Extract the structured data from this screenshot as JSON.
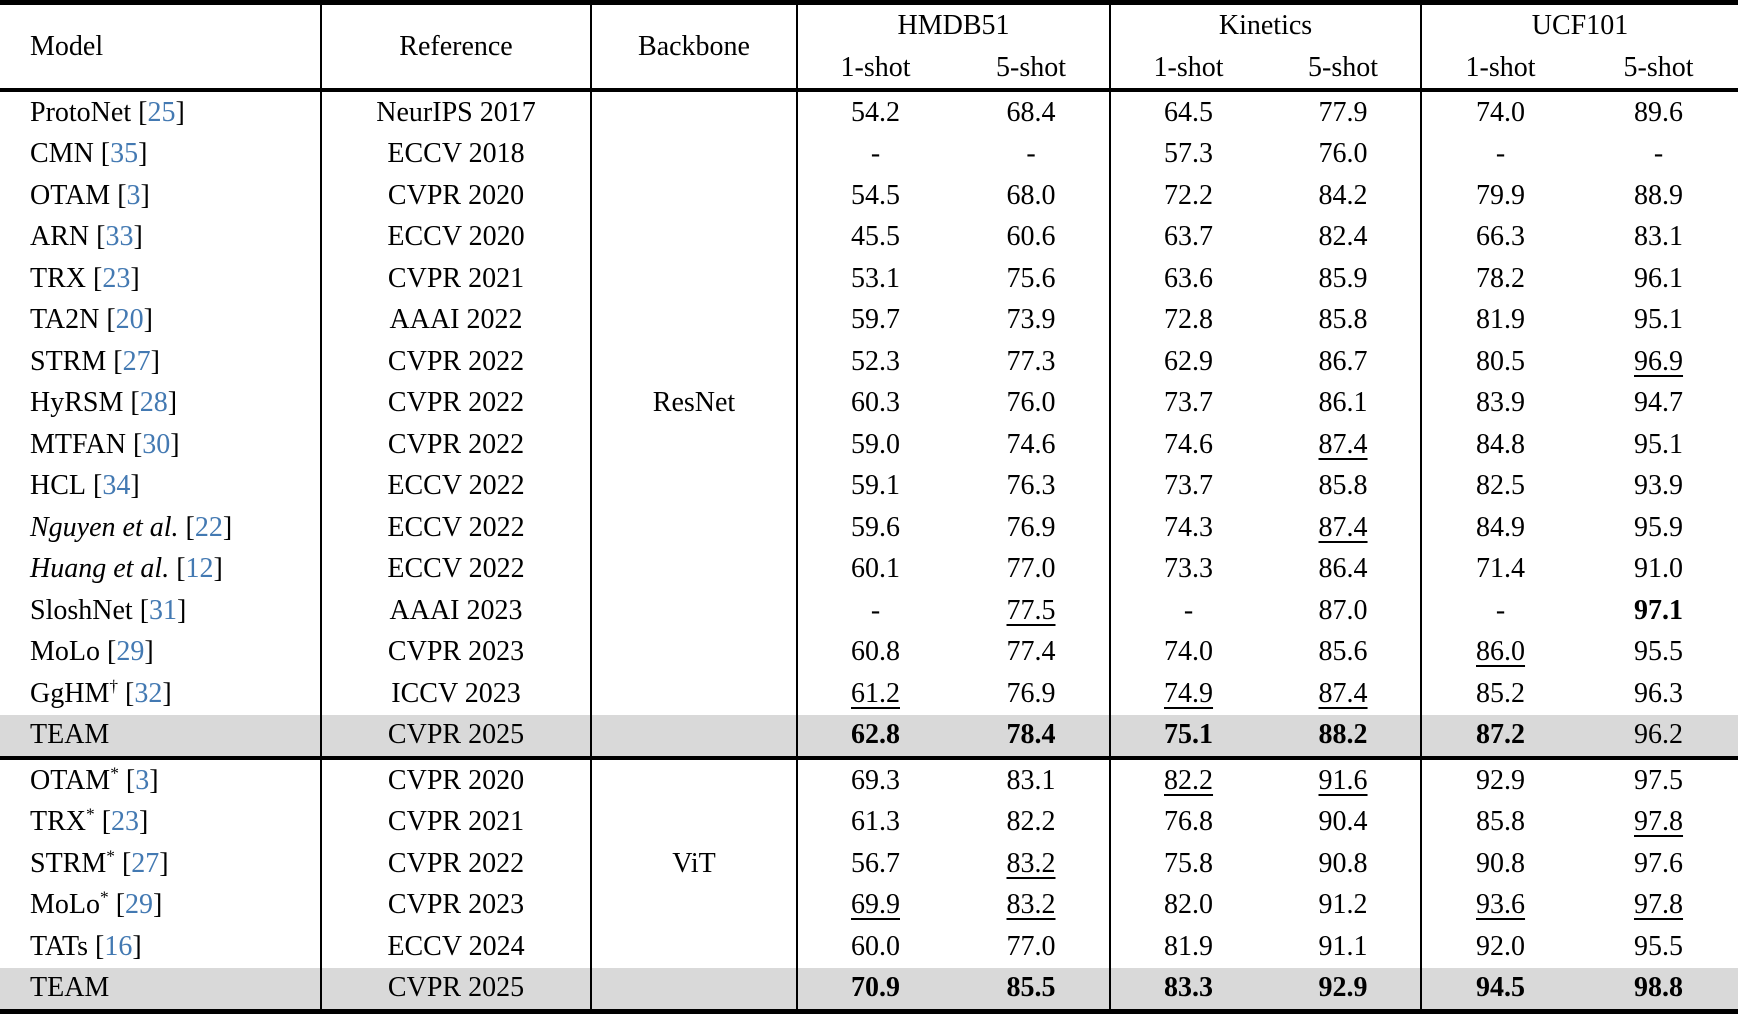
{
  "colors": {
    "citation_link": "#4379b2",
    "row_highlight": "#d9d9d9",
    "rule_black": "#000000"
  },
  "punct": {
    "open_bracket": "[",
    "close_bracket": "]"
  },
  "table": {
    "col_headers": {
      "model": "Model",
      "reference": "Reference",
      "backbone": "Backbone",
      "datasets": [
        "HMDB51",
        "Kinetics",
        "UCF101"
      ],
      "shots": [
        "1-shot",
        "5-shot"
      ]
    },
    "sections": [
      {
        "backbone": "ResNet",
        "rows": [
          {
            "name": "ProtoNet",
            "sup": "",
            "italic": false,
            "cite": "25",
            "ref": "NeurIPS 2017",
            "highlight": false,
            "cells": [
              "54.2",
              "68.4",
              "64.5",
              "77.9",
              "74.0",
              "89.6"
            ],
            "styles": [
              "",
              "",
              "",
              "",
              "",
              ""
            ]
          },
          {
            "name": "CMN",
            "sup": "",
            "italic": false,
            "cite": "35",
            "ref": "ECCV 2018",
            "highlight": false,
            "cells": [
              "-",
              "-",
              "57.3",
              "76.0",
              "-",
              "-"
            ],
            "styles": [
              "",
              "",
              "",
              "",
              "",
              ""
            ]
          },
          {
            "name": "OTAM",
            "sup": "",
            "italic": false,
            "cite": "3",
            "ref": "CVPR 2020",
            "highlight": false,
            "cells": [
              "54.5",
              "68.0",
              "72.2",
              "84.2",
              "79.9",
              "88.9"
            ],
            "styles": [
              "",
              "",
              "",
              "",
              "",
              ""
            ]
          },
          {
            "name": "ARN",
            "sup": "",
            "italic": false,
            "cite": "33",
            "ref": "ECCV 2020",
            "highlight": false,
            "cells": [
              "45.5",
              "60.6",
              "63.7",
              "82.4",
              "66.3",
              "83.1"
            ],
            "styles": [
              "",
              "",
              "",
              "",
              "",
              ""
            ]
          },
          {
            "name": "TRX",
            "sup": "",
            "italic": false,
            "cite": "23",
            "ref": "CVPR 2021",
            "highlight": false,
            "cells": [
              "53.1",
              "75.6",
              "63.6",
              "85.9",
              "78.2",
              "96.1"
            ],
            "styles": [
              "",
              "",
              "",
              "",
              "",
              ""
            ]
          },
          {
            "name": "TA2N",
            "sup": "",
            "italic": false,
            "cite": "20",
            "ref": "AAAI 2022",
            "highlight": false,
            "cells": [
              "59.7",
              "73.9",
              "72.8",
              "85.8",
              "81.9",
              "95.1"
            ],
            "styles": [
              "",
              "",
              "",
              "",
              "",
              ""
            ]
          },
          {
            "name": "STRM",
            "sup": "",
            "italic": false,
            "cite": "27",
            "ref": "CVPR 2022",
            "highlight": false,
            "cells": [
              "52.3",
              "77.3",
              "62.9",
              "86.7",
              "80.5",
              "96.9"
            ],
            "styles": [
              "",
              "",
              "",
              "",
              "",
              "u"
            ]
          },
          {
            "name": "HyRSM",
            "sup": "",
            "italic": false,
            "cite": "28",
            "ref": "CVPR 2022",
            "highlight": false,
            "cells": [
              "60.3",
              "76.0",
              "73.7",
              "86.1",
              "83.9",
              "94.7"
            ],
            "styles": [
              "",
              "",
              "",
              "",
              "",
              ""
            ]
          },
          {
            "name": "MTFAN",
            "sup": "",
            "italic": false,
            "cite": "30",
            "ref": "CVPR 2022",
            "highlight": false,
            "cells": [
              "59.0",
              "74.6",
              "74.6",
              "87.4",
              "84.8",
              "95.1"
            ],
            "styles": [
              "",
              "",
              "",
              "u",
              "",
              ""
            ]
          },
          {
            "name": "HCL",
            "sup": "",
            "italic": false,
            "cite": "34",
            "ref": "ECCV 2022",
            "highlight": false,
            "cells": [
              "59.1",
              "76.3",
              "73.7",
              "85.8",
              "82.5",
              "93.9"
            ],
            "styles": [
              "",
              "",
              "",
              "",
              "",
              ""
            ]
          },
          {
            "name": "Nguyen et al.",
            "sup": "",
            "italic": true,
            "cite": "22",
            "ref": "ECCV 2022",
            "highlight": false,
            "cells": [
              "59.6",
              "76.9",
              "74.3",
              "87.4",
              "84.9",
              "95.9"
            ],
            "styles": [
              "",
              "",
              "",
              "u",
              "",
              ""
            ]
          },
          {
            "name": "Huang et al.",
            "sup": "",
            "italic": true,
            "cite": "12",
            "ref": "ECCV 2022",
            "highlight": false,
            "cells": [
              "60.1",
              "77.0",
              "73.3",
              "86.4",
              "71.4",
              "91.0"
            ],
            "styles": [
              "",
              "",
              "",
              "",
              "",
              ""
            ]
          },
          {
            "name": "SloshNet",
            "sup": "",
            "italic": false,
            "cite": "31",
            "ref": "AAAI 2023",
            "highlight": false,
            "cells": [
              "-",
              "77.5",
              "-",
              "87.0",
              "-",
              "97.1"
            ],
            "styles": [
              "",
              "u",
              "",
              "",
              "",
              "b"
            ]
          },
          {
            "name": "MoLo",
            "sup": "",
            "italic": false,
            "cite": "29",
            "ref": "CVPR 2023",
            "highlight": false,
            "cells": [
              "60.8",
              "77.4",
              "74.0",
              "85.6",
              "86.0",
              "95.5"
            ],
            "styles": [
              "",
              "",
              "",
              "",
              "u",
              ""
            ]
          },
          {
            "name": "GgHM",
            "sup": "†",
            "italic": false,
            "cite": "32",
            "ref": "ICCV 2023",
            "highlight": false,
            "cells": [
              "61.2",
              "76.9",
              "74.9",
              "87.4",
              "85.2",
              "96.3"
            ],
            "styles": [
              "u",
              "",
              "u",
              "u",
              "",
              ""
            ]
          },
          {
            "name": "TEAM",
            "sup": "",
            "italic": false,
            "cite": null,
            "ref": "CVPR 2025",
            "highlight": true,
            "cells": [
              "62.8",
              "78.4",
              "75.1",
              "88.2",
              "87.2",
              "96.2"
            ],
            "styles": [
              "b",
              "b",
              "b",
              "b",
              "b",
              ""
            ]
          }
        ]
      },
      {
        "backbone": "ViT",
        "rows": [
          {
            "name": "OTAM",
            "sup": "*",
            "italic": false,
            "cite": "3",
            "ref": "CVPR 2020",
            "highlight": false,
            "cells": [
              "69.3",
              "83.1",
              "82.2",
              "91.6",
              "92.9",
              "97.5"
            ],
            "styles": [
              "",
              "",
              "u",
              "u",
              "",
              ""
            ]
          },
          {
            "name": "TRX",
            "sup": "*",
            "italic": false,
            "cite": "23",
            "ref": "CVPR 2021",
            "highlight": false,
            "cells": [
              "61.3",
              "82.2",
              "76.8",
              "90.4",
              "85.8",
              "97.8"
            ],
            "styles": [
              "",
              "",
              "",
              "",
              "",
              "u"
            ]
          },
          {
            "name": "STRM",
            "sup": "*",
            "italic": false,
            "cite": "27",
            "ref": "CVPR 2022",
            "highlight": false,
            "cells": [
              "56.7",
              "83.2",
              "75.8",
              "90.8",
              "90.8",
              "97.6"
            ],
            "styles": [
              "",
              "u",
              "",
              "",
              "",
              ""
            ]
          },
          {
            "name": "MoLo",
            "sup": "*",
            "italic": false,
            "cite": "29",
            "ref": "CVPR 2023",
            "highlight": false,
            "cells": [
              "69.9",
              "83.2",
              "82.0",
              "91.2",
              "93.6",
              "97.8"
            ],
            "styles": [
              "u",
              "u",
              "",
              "",
              "u",
              "u"
            ]
          },
          {
            "name": "TATs",
            "sup": "",
            "italic": false,
            "cite": "16",
            "ref": "ECCV 2024",
            "highlight": false,
            "cells": [
              "60.0",
              "77.0",
              "81.9",
              "91.1",
              "92.0",
              "95.5"
            ],
            "styles": [
              "",
              "",
              "",
              "",
              "",
              ""
            ]
          },
          {
            "name": "TEAM",
            "sup": "",
            "italic": false,
            "cite": null,
            "ref": "CVPR 2025",
            "highlight": true,
            "cells": [
              "70.9",
              "85.5",
              "83.3",
              "92.9",
              "94.5",
              "98.8"
            ],
            "styles": [
              "b",
              "b",
              "b",
              "b",
              "b",
              "b"
            ]
          }
        ]
      }
    ]
  }
}
